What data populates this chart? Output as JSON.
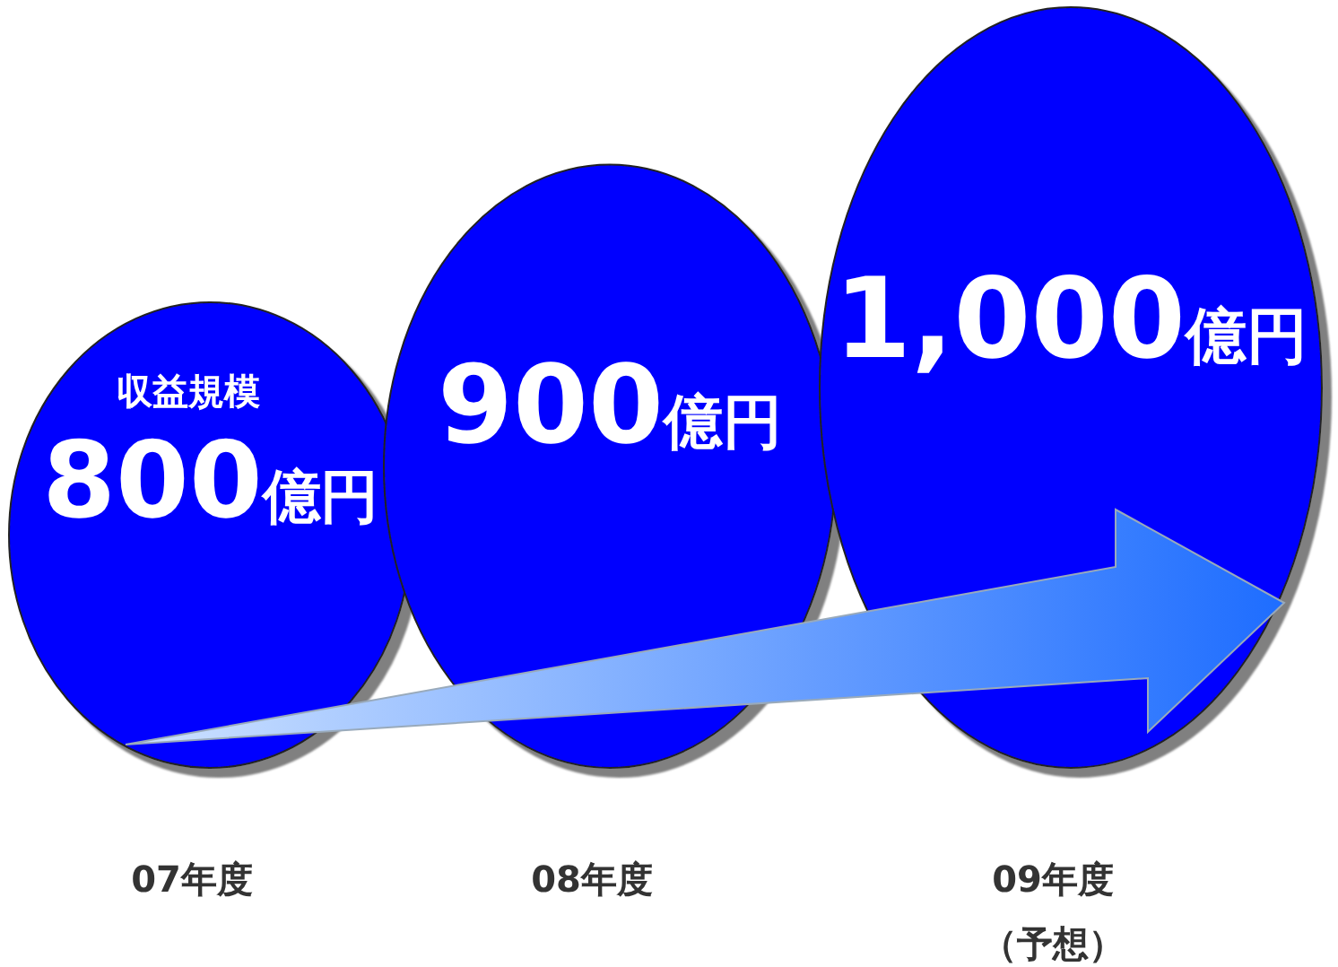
{
  "chart_data": {
    "type": "other",
    "categories": [
      "07年度",
      "08年度",
      "09年度（予想）"
    ],
    "values": [
      800,
      900,
      1000
    ],
    "value_labels": [
      "800億円",
      "900億円",
      "1,000億円"
    ],
    "colors": [
      "#0000ff",
      "#0000ff",
      "#0000ff"
    ],
    "annotations": [
      {
        "text": "収益規模",
        "x": "07年度"
      }
    ]
  }
}
